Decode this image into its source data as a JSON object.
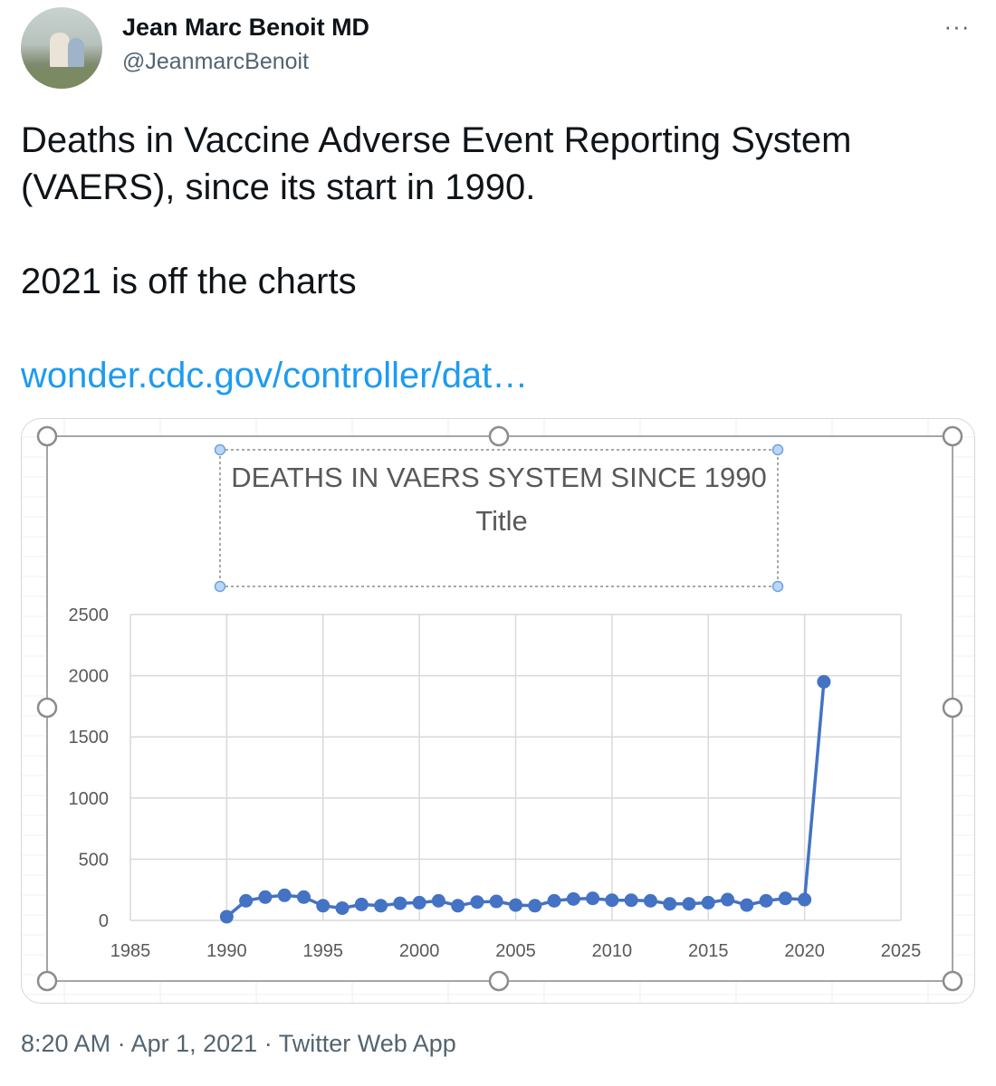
{
  "author": {
    "display_name": "Jean Marc Benoit MD",
    "handle": "@JeanmarcBenoit"
  },
  "tweet": {
    "lines": [
      "Deaths in Vaccine Adverse Event Reporting System",
      "(VAERS), since its start in 1990.",
      "2021 is off the charts"
    ],
    "link_text": "wonder.cdc.gov/controller/dat…"
  },
  "footer": {
    "time": "8:20 AM",
    "date": "Apr 1, 2021",
    "client": "Twitter Web App",
    "separator": "·"
  },
  "icons": {
    "more": "more-horizontal-icon",
    "more_glyph": "···"
  },
  "colors": {
    "link": "#1d9bf0",
    "series": "#4472c4",
    "handle_gray": "#536471"
  },
  "chart_data": {
    "type": "scatter",
    "title_lines": [
      "DEATHS IN VAERS SYSTEM SINCE 1990",
      "Title"
    ],
    "xlim": [
      1985,
      2025
    ],
    "ylim": [
      0,
      2500
    ],
    "x_ticks": [
      1985,
      1990,
      1995,
      2000,
      2005,
      2010,
      2015,
      2020,
      2025
    ],
    "y_ticks": [
      0,
      500,
      1000,
      1500,
      2000,
      2500
    ],
    "grid": true,
    "connected": true,
    "series": [
      {
        "x": [
          1990,
          1991,
          1992,
          1993,
          1994,
          1995,
          1996,
          1997,
          1998,
          1999,
          2000,
          2001,
          2002,
          2003,
          2004,
          2005,
          2006,
          2007,
          2008,
          2009,
          2010,
          2011,
          2012,
          2013,
          2014,
          2015,
          2016,
          2017,
          2018,
          2019,
          2020,
          2021
        ],
        "y": [
          30,
          160,
          190,
          205,
          190,
          120,
          100,
          130,
          120,
          140,
          145,
          160,
          120,
          150,
          155,
          125,
          120,
          160,
          175,
          180,
          165,
          165,
          160,
          135,
          135,
          145,
          170,
          125,
          160,
          180,
          170,
          1950
        ]
      }
    ]
  }
}
